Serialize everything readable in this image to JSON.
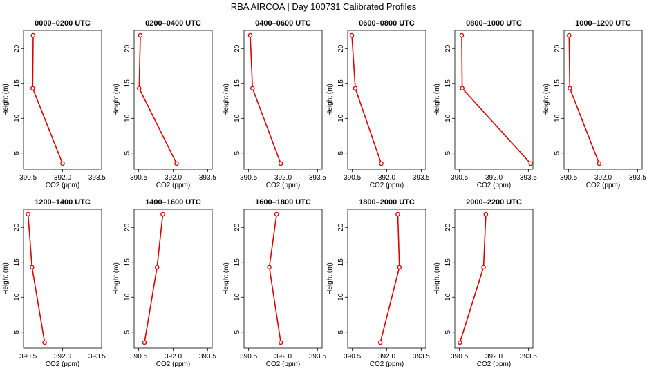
{
  "figure_title": "RBA AIRCOA |  Day 100731  Calibrated Profiles",
  "colors": {
    "line": "#dd0000",
    "axis": "#000000",
    "background": "#ffffff"
  },
  "chart_data": {
    "type": "line",
    "title": "RBA AIRCOA |  Day 100731  Calibrated Profiles",
    "xlabel": "CO2 (ppm)",
    "ylabel": "Height (m)",
    "xlim": [
      390.3,
      393.7
    ],
    "ylim": [
      2.7,
      22.6
    ],
    "xticks": [
      390.5,
      392.0,
      393.5
    ],
    "xtick_labels": [
      "390.5",
      "392.0",
      "393.5"
    ],
    "yticks": [
      5,
      10,
      15,
      20
    ],
    "ytick_labels": [
      "5",
      "10",
      "15",
      "20"
    ],
    "heights": [
      3.5,
      14.3,
      21.9
    ],
    "panels": [
      {
        "title": "0000–0200 UTC",
        "co2": [
          392.0,
          390.7,
          390.72
        ]
      },
      {
        "title": "0200–0400 UTC",
        "co2": [
          392.15,
          390.52,
          390.57
        ]
      },
      {
        "title": "0400–0600 UTC",
        "co2": [
          391.9,
          390.67,
          390.57
        ]
      },
      {
        "title": "0600–0800 UTC",
        "co2": [
          391.76,
          390.63,
          390.48
        ]
      },
      {
        "title": "0800–1000 UTC",
        "co2": [
          393.6,
          390.62,
          390.6
        ]
      },
      {
        "title": "1000–1200 UTC",
        "co2": [
          391.83,
          390.55,
          390.52
        ]
      },
      {
        "title": "1200–1400 UTC",
        "co2": [
          391.22,
          390.67,
          390.5
        ]
      },
      {
        "title": "1400–1600 UTC",
        "co2": [
          390.75,
          391.3,
          391.55
        ]
      },
      {
        "title": "1600–1800 UTC",
        "co2": [
          391.9,
          391.4,
          391.72
        ]
      },
      {
        "title": "1800–2000 UTC",
        "co2": [
          391.72,
          392.55,
          392.48
        ]
      },
      {
        "title": "2000–2200 UTC",
        "co2": [
          390.52,
          391.55,
          391.65
        ]
      }
    ]
  }
}
